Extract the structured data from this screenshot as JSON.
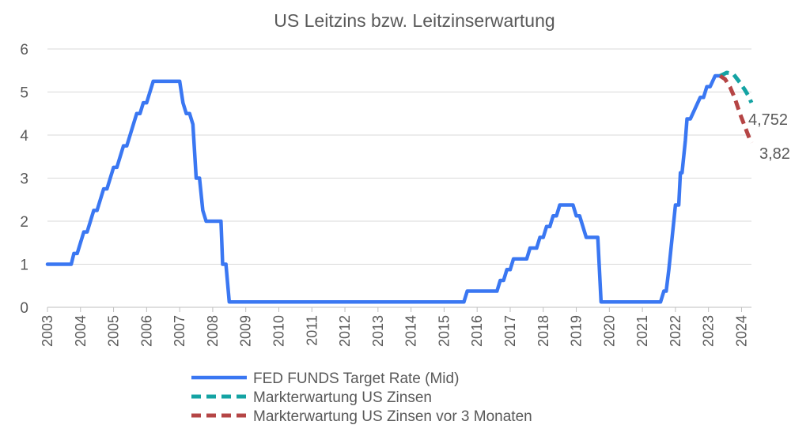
{
  "chart_data": {
    "type": "line",
    "title": "US Leitzins bzw. Leitzinserwartung",
    "xlabel": "",
    "ylabel": "",
    "xlim": [
      2003.0,
      2024.3
    ],
    "ylim": [
      0,
      6
    ],
    "y_ticks": [
      0,
      1,
      2,
      3,
      4,
      5,
      6
    ],
    "x_ticks": [
      2003,
      2004,
      2005,
      2006,
      2007,
      2008,
      2009,
      2010,
      2011,
      2012,
      2013,
      2014,
      2015,
      2016,
      2017,
      2018,
      2019,
      2020,
      2021,
      2022,
      2023,
      2024
    ],
    "grid": "horizontal",
    "legend_position": "bottom",
    "series": [
      {
        "name": "FED FUNDS Target Rate (Mid)",
        "color": "#3A77F2",
        "style": "solid",
        "points": [
          [
            2003.0,
            1.0
          ],
          [
            2003.5,
            1.0
          ],
          [
            2003.72,
            1.0
          ],
          [
            2003.8,
            1.25
          ],
          [
            2003.9,
            1.25
          ],
          [
            2004.0,
            1.5
          ],
          [
            2004.1,
            1.75
          ],
          [
            2004.2,
            1.75
          ],
          [
            2004.3,
            2.0
          ],
          [
            2004.4,
            2.25
          ],
          [
            2004.5,
            2.25
          ],
          [
            2004.6,
            2.5
          ],
          [
            2004.7,
            2.75
          ],
          [
            2004.8,
            2.75
          ],
          [
            2004.9,
            3.0
          ],
          [
            2005.0,
            3.25
          ],
          [
            2005.1,
            3.25
          ],
          [
            2005.2,
            3.5
          ],
          [
            2005.3,
            3.75
          ],
          [
            2005.4,
            3.75
          ],
          [
            2005.5,
            4.0
          ],
          [
            2005.6,
            4.25
          ],
          [
            2005.7,
            4.5
          ],
          [
            2005.8,
            4.5
          ],
          [
            2005.9,
            4.75
          ],
          [
            2006.0,
            4.75
          ],
          [
            2006.1,
            5.0
          ],
          [
            2006.2,
            5.25
          ],
          [
            2006.4,
            5.25
          ],
          [
            2006.9,
            5.25
          ],
          [
            2007.0,
            5.25
          ],
          [
            2007.1,
            4.75
          ],
          [
            2007.2,
            4.5
          ],
          [
            2007.3,
            4.5
          ],
          [
            2007.4,
            4.25
          ],
          [
            2007.5,
            3.0
          ],
          [
            2007.6,
            3.0
          ],
          [
            2007.7,
            2.25
          ],
          [
            2007.8,
            2.0
          ],
          [
            2008.0,
            2.0
          ],
          [
            2008.25,
            2.0
          ],
          [
            2008.3,
            1.0
          ],
          [
            2008.4,
            1.0
          ],
          [
            2008.5,
            0.125
          ],
          [
            2010.0,
            0.125
          ],
          [
            2015.0,
            0.125
          ],
          [
            2015.6,
            0.125
          ],
          [
            2015.7,
            0.375
          ],
          [
            2016.0,
            0.375
          ],
          [
            2016.5,
            0.375
          ],
          [
            2016.6,
            0.375
          ],
          [
            2016.7,
            0.625
          ],
          [
            2016.8,
            0.625
          ],
          [
            2016.9,
            0.875
          ],
          [
            2017.0,
            0.875
          ],
          [
            2017.1,
            1.125
          ],
          [
            2017.5,
            1.125
          ],
          [
            2017.6,
            1.375
          ],
          [
            2017.8,
            1.375
          ],
          [
            2017.9,
            1.625
          ],
          [
            2018.0,
            1.625
          ],
          [
            2018.1,
            1.875
          ],
          [
            2018.2,
            1.875
          ],
          [
            2018.3,
            2.125
          ],
          [
            2018.4,
            2.125
          ],
          [
            2018.5,
            2.375
          ],
          [
            2018.7,
            2.375
          ],
          [
            2018.9,
            2.375
          ],
          [
            2019.0,
            2.125
          ],
          [
            2019.1,
            2.125
          ],
          [
            2019.2,
            1.875
          ],
          [
            2019.3,
            1.625
          ],
          [
            2019.5,
            1.625
          ],
          [
            2019.65,
            1.625
          ],
          [
            2019.75,
            0.125
          ],
          [
            2020.0,
            0.125
          ],
          [
            2021.0,
            0.125
          ],
          [
            2021.55,
            0.125
          ],
          [
            2021.65,
            0.375
          ],
          [
            2021.72,
            0.375
          ],
          [
            2021.8,
            0.875
          ],
          [
            2021.9,
            1.625
          ],
          [
            2022.0,
            2.375
          ],
          [
            2022.1,
            2.375
          ],
          [
            2022.15,
            3.125
          ],
          [
            2022.2,
            3.125
          ],
          [
            2022.3,
            3.875
          ],
          [
            2022.35,
            4.375
          ],
          [
            2022.45,
            4.375
          ],
          [
            2022.6,
            4.625
          ],
          [
            2022.75,
            4.875
          ],
          [
            2022.85,
            4.875
          ],
          [
            2022.95,
            5.125
          ],
          [
            2023.05,
            5.125
          ],
          [
            2023.2,
            5.375
          ],
          [
            2023.35,
            5.375
          ]
        ]
      },
      {
        "name": "Markterwartung US Zinsen",
        "color": "#14A3A3",
        "style": "dashed",
        "points": [
          [
            2023.35,
            5.375
          ],
          [
            2023.55,
            5.45
          ],
          [
            2023.75,
            5.42
          ],
          [
            2023.95,
            5.22
          ],
          [
            2024.1,
            5.05
          ],
          [
            2024.2,
            4.92
          ],
          [
            2024.3,
            4.752
          ]
        ],
        "end_label": "4,752"
      },
      {
        "name": "Markterwartung US Zinsen vor 3 Monaten",
        "color": "#B54545",
        "style": "dashed",
        "points": [
          [
            2023.35,
            5.375
          ],
          [
            2023.5,
            5.3
          ],
          [
            2023.65,
            5.12
          ],
          [
            2023.8,
            4.85
          ],
          [
            2023.95,
            4.5
          ],
          [
            2024.1,
            4.2
          ],
          [
            2024.25,
            3.9
          ],
          [
            2024.3,
            3.82
          ]
        ],
        "end_label": "3,82"
      }
    ]
  }
}
